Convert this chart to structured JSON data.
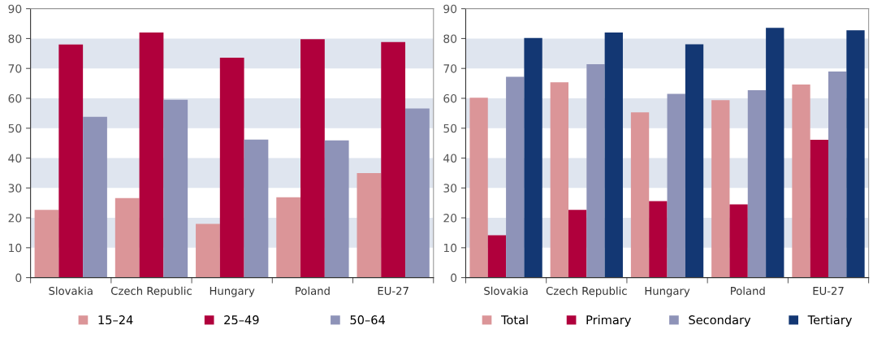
{
  "chart_data": [
    {
      "type": "bar",
      "categories": [
        "Slovakia",
        "Czech Republic",
        "Hungary",
        "Poland",
        "EU-27"
      ],
      "series": [
        {
          "name": "15–24",
          "color": "#db9598",
          "values": [
            22.7,
            26.6,
            18,
            26.9,
            35
          ]
        },
        {
          "name": "25–49",
          "color": "#b0003c",
          "values": [
            78,
            82,
            73.6,
            79.8,
            78.8
          ]
        },
        {
          "name": "50–64",
          "color": "#8e93b8",
          "values": [
            53.8,
            59.5,
            46.2,
            45.9,
            56.6
          ]
        }
      ],
      "ylim": [
        0,
        90
      ],
      "yticks": [
        0,
        10,
        20,
        30,
        40,
        50,
        60,
        70,
        80,
        90
      ],
      "bands": [
        {
          "axis": "y",
          "from": 10,
          "to": 20,
          "color": "#dfe5ef"
        },
        {
          "axis": "y",
          "from": 30,
          "to": 40,
          "color": "#dfe5ef"
        },
        {
          "axis": "y",
          "from": 50,
          "to": 60,
          "color": "#dfe5ef"
        },
        {
          "axis": "y",
          "from": 70,
          "to": 80,
          "color": "#dfe5ef"
        }
      ],
      "legend": "bottom"
    },
    {
      "type": "bar",
      "categories": [
        "Slovakia",
        "Czech Republic",
        "Hungary",
        "Poland",
        "EU-27"
      ],
      "series": [
        {
          "name": "Total",
          "color": "#db9598",
          "values": [
            60.2,
            65.4,
            55.3,
            59.4,
            64.6
          ]
        },
        {
          "name": "Primary",
          "color": "#b0003c",
          "values": [
            14.2,
            22.7,
            25.6,
            24.5,
            46.1
          ]
        },
        {
          "name": "Secondary",
          "color": "#8e93b8",
          "values": [
            67.2,
            71.4,
            61.5,
            62.7,
            69
          ]
        },
        {
          "name": "Tertiary",
          "color": "#133773",
          "values": [
            80.2,
            82,
            78.1,
            83.6,
            82.8
          ]
        }
      ],
      "ylim": [
        0,
        90
      ],
      "yticks": [
        0,
        10,
        20,
        30,
        40,
        50,
        60,
        70,
        80,
        90
      ],
      "bands": [
        {
          "axis": "y",
          "from": 10,
          "to": 20,
          "color": "#dfe5ef"
        },
        {
          "axis": "y",
          "from": 30,
          "to": 40,
          "color": "#dfe5ef"
        },
        {
          "axis": "y",
          "from": 50,
          "to": 60,
          "color": "#dfe5ef"
        },
        {
          "axis": "y",
          "from": 70,
          "to": 80,
          "color": "#dfe5ef"
        }
      ],
      "legend": "bottom"
    }
  ]
}
